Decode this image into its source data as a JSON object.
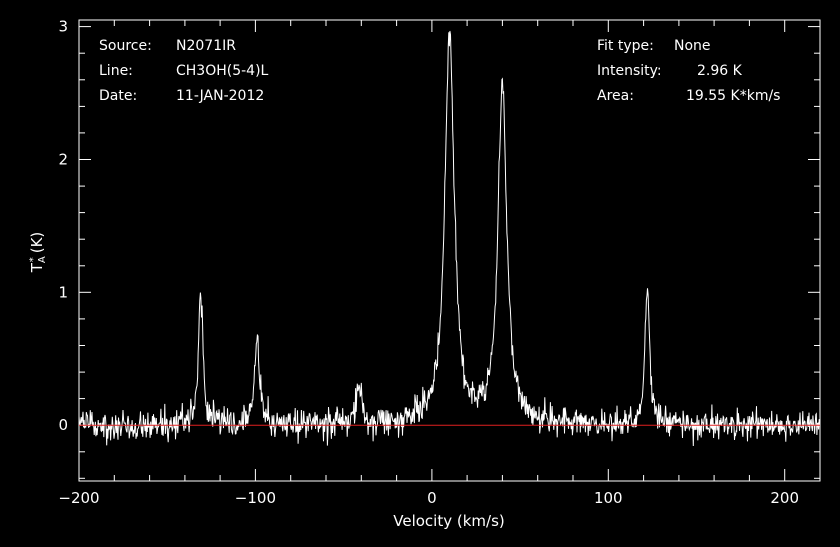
{
  "chart_data": {
    "type": "line",
    "title": "",
    "xlabel": "Velocity (km/s)",
    "ylabel": "T_A^* (K)",
    "xlim": [
      -200,
      220
    ],
    "ylim": [
      -0.42,
      3.05
    ],
    "x_ticks": [
      -200,
      -100,
      0,
      100,
      200
    ],
    "x_tick_labels": [
      "−200",
      "−100",
      "0",
      "100",
      "200"
    ],
    "y_ticks": [
      0,
      1,
      2,
      3
    ],
    "y_tick_labels": [
      "0",
      "1",
      "2",
      "3"
    ],
    "grid": false,
    "baseline": 0,
    "peaks": [
      {
        "x": -131,
        "height": 0.98,
        "width": 1.6
      },
      {
        "x": -99,
        "height": 0.66,
        "width": 1.6
      },
      {
        "x": -41.5,
        "height": 0.32,
        "width": 1.5
      },
      {
        "x": 10,
        "height": 2.94,
        "width": 3.2
      },
      {
        "x": 40,
        "height": 2.55,
        "width": 3.0
      },
      {
        "x": 122,
        "height": 1.0,
        "width": 1.6
      }
    ],
    "noise_rms": 0.055,
    "colors": {
      "background": "#000000",
      "axes": "#ffffff",
      "spectrum": "#ffffff",
      "baseline": "#e02020"
    },
    "info_left": [
      {
        "label": "Source:",
        "value": "N2071IR"
      },
      {
        "label": "Line:",
        "value": "CH3OH(5-4)L"
      },
      {
        "label": "Date:",
        "value": "11-JAN-2012"
      }
    ],
    "info_right": [
      {
        "label": "Fit type:",
        "value": "None"
      },
      {
        "label": "Intensity:",
        "value": "2.96 K"
      },
      {
        "label": "Area:",
        "value": "19.55 K*km/s"
      }
    ]
  }
}
